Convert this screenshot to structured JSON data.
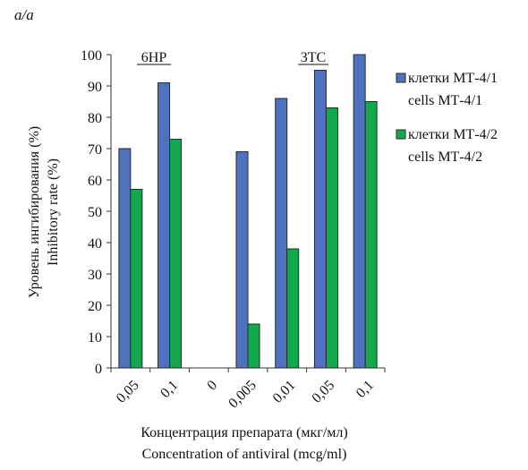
{
  "corner_label": "a/a",
  "chart_data": {
    "type": "bar",
    "categories": [
      "0,05",
      "0,1",
      "0",
      "0,005",
      "0,01",
      "0,05",
      "0,1"
    ],
    "series": [
      {
        "name": "клетки МТ-4/1",
        "name_en": "cells МТ-4/1",
        "color": "#4f72be",
        "values": [
          70,
          91,
          null,
          69,
          86,
          95,
          100
        ]
      },
      {
        "name": "клетки МТ-4/2",
        "name_en": "cells МТ-4/2",
        "color": "#12a84e",
        "values": [
          57,
          73,
          null,
          14,
          38,
          83,
          85
        ]
      }
    ],
    "group_labels": [
      "6HP",
      "3TC"
    ],
    "ylabel_ru": "Уровень ингибирования (%)",
    "ylabel_en": "Inhibitory rate (%)",
    "xlabel_ru": "Концентрация препарата (мкг/мл)",
    "xlabel_en": "Concentration of antiviral (mcg/ml)",
    "ylim": [
      0,
      100
    ],
    "yticks": [
      0,
      10,
      20,
      30,
      40,
      50,
      60,
      70,
      80,
      90,
      100
    ],
    "grid": false,
    "legend_position": "right"
  }
}
